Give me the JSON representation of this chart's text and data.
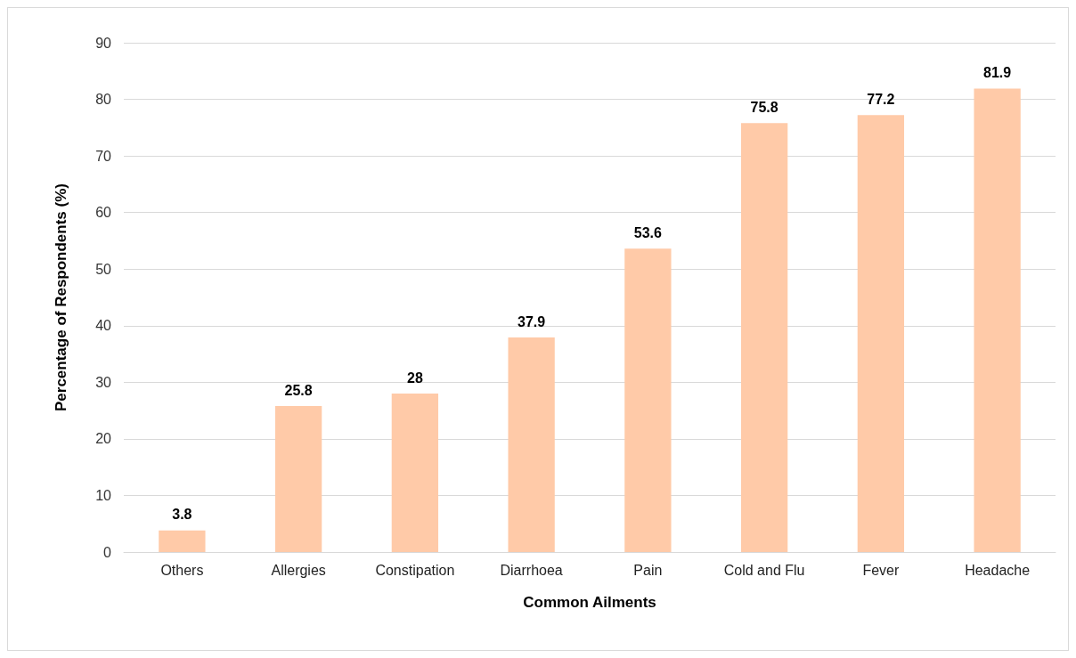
{
  "chart_data": {
    "type": "bar",
    "xlabel": "Common Ailments",
    "ylabel": "Percentage of Respondents (%)",
    "categories": [
      "Others",
      "Allergies",
      "Constipation",
      "Diarrhoea",
      "Pain",
      "Cold and Flu",
      "Fever",
      "Headache"
    ],
    "values": [
      3.8,
      25.8,
      28,
      37.9,
      53.6,
      75.8,
      77.2,
      81.9
    ],
    "color": "#ffcaa8",
    "ylim": [
      0,
      90
    ],
    "yticks": [
      0,
      10,
      20,
      30,
      40,
      50,
      60,
      70,
      80,
      90
    ],
    "grid": "y",
    "data_labels": true
  }
}
